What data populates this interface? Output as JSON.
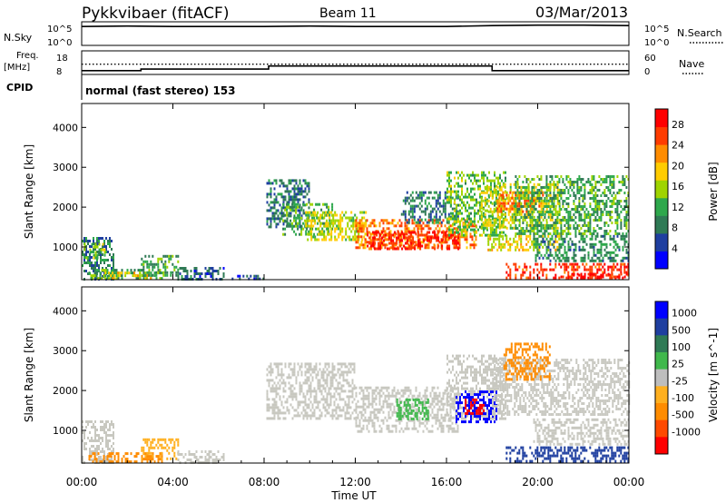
{
  "header": {
    "station": "Pykkvibaer (fitACF)",
    "beam": "Beam 11",
    "date": "03/Mar/2013"
  },
  "sky_panel": {
    "left_label": "N.Sky",
    "left_ticks": [
      "10^5",
      "10^0"
    ],
    "right_ticks": [
      "10^5",
      "10^0"
    ],
    "right_label": "N.Search"
  },
  "freq_panel": {
    "left_label_1": "Freq.",
    "left_label_2": "[MHz]",
    "left_ticks": [
      "18",
      "8"
    ],
    "right_ticks": [
      "60",
      "0"
    ],
    "right_label": "Nave"
  },
  "cpid": {
    "label": "CPID",
    "text": "normal (fast stereo) 153"
  },
  "x_axis": {
    "ticks": [
      "00:00",
      "04:00",
      "08:00",
      "12:00",
      "16:00",
      "20:00",
      "00:00"
    ],
    "label": "Time UT"
  },
  "colors": {
    "power": [
      "#0000ff",
      "#1f3fa0",
      "#2f7a55",
      "#2ea84c",
      "#9fd400",
      "#ffcc00",
      "#ff8c00",
      "#ff3c00",
      "#ff0000"
    ],
    "velocity": [
      "#0000ff",
      "#1f3fa0",
      "#2f7a55",
      "#40b84c",
      "#bebebe",
      "#ffb020",
      "#ff8c00",
      "#ff4a00",
      "#ff0000"
    ],
    "velocity_gray": "#c8c8c0"
  },
  "chart_data": [
    {
      "type": "line",
      "name": "sky-noise",
      "x": [
        0,
        2,
        4,
        6,
        8,
        10,
        12,
        14,
        16,
        18,
        20,
        22,
        24
      ],
      "y_log10": [
        4.0,
        4.1,
        4.0,
        4.0,
        4.0,
        4.1,
        4.0,
        4.0,
        4.0,
        4.2,
        4.3,
        4.3,
        4.2
      ],
      "yticks": [
        "10^0",
        "10^5"
      ],
      "ylim_log10": [
        0,
        5
      ]
    },
    {
      "type": "line",
      "name": "frequency",
      "series": [
        {
          "name": "Freq",
          "x": [
            0,
            2.6,
            2.6,
            8.2,
            8.2,
            18.0,
            18.0,
            24
          ],
          "values": [
            9.6,
            9.6,
            10.3,
            10.3,
            11.6,
            11.6,
            9.6,
            9.6
          ]
        },
        {
          "name": "Nave",
          "x": [
            0,
            24
          ],
          "values": [
            26,
            26
          ]
        }
      ],
      "ylim_freq": [
        8,
        18
      ],
      "ylim_nave": [
        0,
        60
      ]
    },
    {
      "type": "heatmap",
      "name": "power",
      "title": "Power [dB]",
      "xlabel": "Time UT",
      "ylabel": "Slant Range [km]",
      "xlim": [
        0,
        24
      ],
      "ylim": [
        180,
        4600
      ],
      "yticks": [
        1000,
        2000,
        3000,
        4000
      ],
      "colorbar_ticks": [
        4,
        8,
        12,
        16,
        20,
        24,
        28
      ],
      "colorbar_range": [
        0,
        31
      ],
      "regions": [
        {
          "t0": 0.0,
          "t1": 1.4,
          "r0": 220,
          "r1": 1250,
          "v": 9
        },
        {
          "t0": 0.1,
          "t1": 1.0,
          "r0": 700,
          "r1": 1100,
          "v": 15
        },
        {
          "t0": 0.3,
          "t1": 3.5,
          "r0": 220,
          "r1": 450,
          "v": 12
        },
        {
          "t0": 1.0,
          "t1": 3.0,
          "r0": 240,
          "r1": 380,
          "v": 19
        },
        {
          "t0": 2.6,
          "t1": 4.2,
          "r0": 300,
          "r1": 800,
          "v": 11
        },
        {
          "t0": 4.2,
          "t1": 6.2,
          "r0": 220,
          "r1": 500,
          "v": 7
        },
        {
          "t0": 6.5,
          "t1": 8.0,
          "r0": 220,
          "r1": 300,
          "v": 6
        },
        {
          "t0": 8.1,
          "t1": 10.0,
          "r0": 1500,
          "r1": 2700,
          "v": 8
        },
        {
          "t0": 8.8,
          "t1": 11.0,
          "r0": 1300,
          "r1": 2100,
          "v": 12
        },
        {
          "t0": 9.8,
          "t1": 12.5,
          "r0": 1200,
          "r1": 1900,
          "v": 17
        },
        {
          "t0": 12.0,
          "t1": 17.3,
          "r0": 1000,
          "r1": 1700,
          "v": 24
        },
        {
          "t0": 12.5,
          "t1": 16.5,
          "r0": 950,
          "r1": 1400,
          "v": 28
        },
        {
          "t0": 14.0,
          "t1": 16.5,
          "r0": 1600,
          "r1": 2400,
          "v": 9
        },
        {
          "t0": 16.0,
          "t1": 18.6,
          "r0": 1300,
          "r1": 2900,
          "v": 14
        },
        {
          "t0": 17.5,
          "t1": 21.0,
          "r0": 1500,
          "r1": 2600,
          "v": 17
        },
        {
          "t0": 18.2,
          "t1": 20.2,
          "r0": 1900,
          "r1": 2400,
          "v": 23
        },
        {
          "t0": 19.0,
          "t1": 24.0,
          "r0": 1300,
          "r1": 2800,
          "v": 12
        },
        {
          "t0": 17.8,
          "t1": 21.0,
          "r0": 900,
          "r1": 1300,
          "v": 18
        },
        {
          "t0": 19.8,
          "t1": 24.0,
          "r0": 650,
          "r1": 1300,
          "v": 10
        },
        {
          "t0": 18.6,
          "t1": 24.0,
          "r0": 220,
          "r1": 600,
          "v": 27
        },
        {
          "t0": 21.0,
          "t1": 24.0,
          "r0": 220,
          "r1": 350,
          "v": 30
        }
      ]
    },
    {
      "type": "heatmap",
      "name": "velocity",
      "title": "Velocity [m s^-1]",
      "xlabel": "Time UT",
      "ylabel": "Slant Range [km]",
      "xlim": [
        0,
        24
      ],
      "ylim": [
        180,
        4600
      ],
      "yticks": [
        1000,
        2000,
        3000,
        4000
      ],
      "colorbar_ticks": [
        1000,
        500,
        100,
        25,
        -25,
        -100,
        -500,
        -1000
      ],
      "regions": [
        {
          "t0": 0.0,
          "t1": 1.4,
          "r0": 220,
          "r1": 1250,
          "v": 0
        },
        {
          "t0": 0.3,
          "t1": 3.5,
          "r0": 220,
          "r1": 450,
          "v": -180
        },
        {
          "t0": 2.6,
          "t1": 4.2,
          "r0": 300,
          "r1": 800,
          "v": -60
        },
        {
          "t0": 4.2,
          "t1": 6.2,
          "r0": 220,
          "r1": 500,
          "v": 0
        },
        {
          "t0": 8.1,
          "t1": 12.0,
          "r0": 1300,
          "r1": 2700,
          "v": 0
        },
        {
          "t0": 12.0,
          "t1": 16.5,
          "r0": 1000,
          "r1": 2100,
          "v": 0
        },
        {
          "t0": 13.8,
          "t1": 15.2,
          "r0": 1300,
          "r1": 1800,
          "v": 60
        },
        {
          "t0": 16.0,
          "t1": 18.6,
          "r0": 1300,
          "r1": 2900,
          "v": 0
        },
        {
          "t0": 16.4,
          "t1": 18.2,
          "r0": 1200,
          "r1": 2000,
          "v": 1000
        },
        {
          "t0": 16.8,
          "t1": 17.6,
          "r0": 1400,
          "r1": 1800,
          "v": -900
        },
        {
          "t0": 18.0,
          "t1": 24.0,
          "r0": 1400,
          "r1": 2800,
          "v": 0
        },
        {
          "t0": 18.5,
          "t1": 20.5,
          "r0": 2300,
          "r1": 3200,
          "v": -150
        },
        {
          "t0": 19.8,
          "t1": 24.0,
          "r0": 650,
          "r1": 1300,
          "v": 0
        },
        {
          "t0": 18.6,
          "t1": 24.0,
          "r0": 220,
          "r1": 600,
          "v": 400
        }
      ]
    }
  ]
}
